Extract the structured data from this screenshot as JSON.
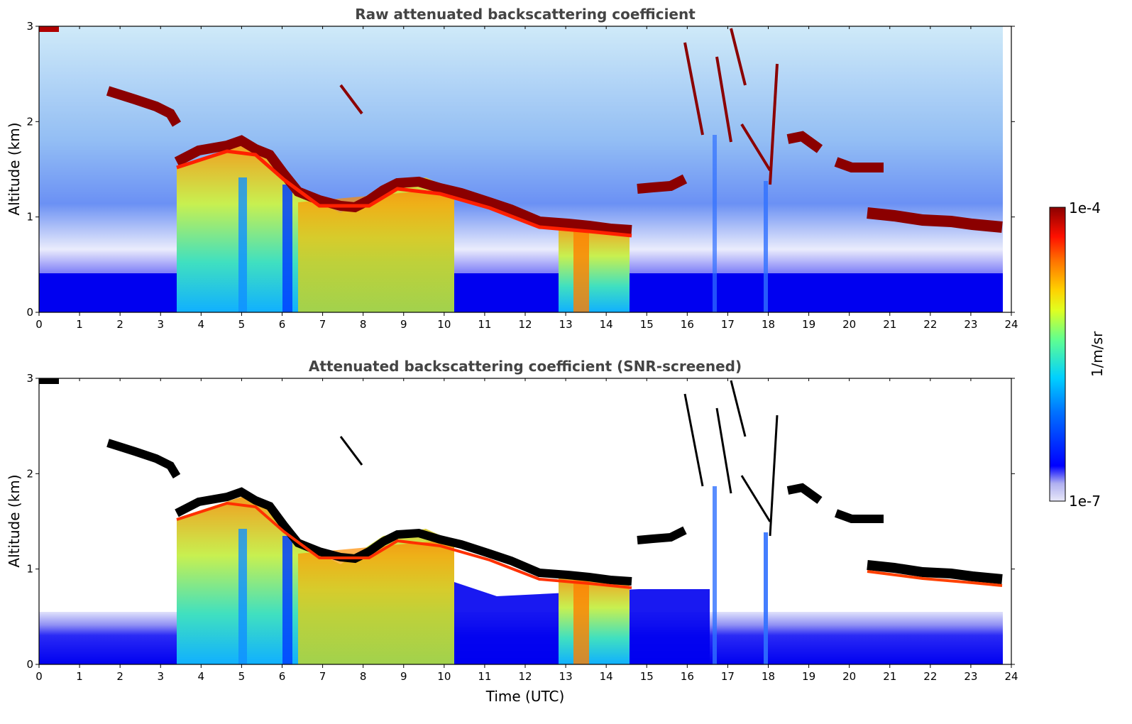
{
  "chart_data": [
    {
      "type": "heatmap",
      "title": "Raw attenuated backscattering coefficient",
      "ylabel": "Altitude (km)",
      "xlabel": "",
      "xlim": [
        0,
        24
      ],
      "ylim": [
        0,
        3
      ],
      "x_ticks": [
        "0",
        "1",
        "2",
        "3",
        "4",
        "5",
        "6",
        "7",
        "8",
        "9",
        "10",
        "11",
        "12",
        "13",
        "14",
        "15",
        "16",
        "17",
        "18",
        "19",
        "20",
        "21",
        "22",
        "23",
        "24"
      ],
      "y_ticks": [
        "0",
        "1",
        "2",
        "3"
      ],
      "cloud_top_profile": [
        {
          "t": 1.7,
          "z": 2.3
        },
        {
          "t": 2.5,
          "z": 2.2
        },
        {
          "t": 3.2,
          "z": 2.0
        },
        {
          "t": 3.5,
          "z": 1.6
        },
        {
          "t": 4.5,
          "z": 1.7
        },
        {
          "t": 5.5,
          "z": 1.6
        },
        {
          "t": 6.5,
          "z": 1.3
        },
        {
          "t": 7.5,
          "z": 1.15
        },
        {
          "t": 9.0,
          "z": 1.35
        },
        {
          "t": 10.5,
          "z": 1.25
        },
        {
          "t": 12.0,
          "z": 1.0
        },
        {
          "t": 13.0,
          "z": 0.95
        },
        {
          "t": 14.0,
          "z": 0.9
        },
        {
          "t": 14.6,
          "z": 0.85
        }
      ],
      "upper_cloud_segments": [
        {
          "t": [
            15.0,
            16.0
          ],
          "z": 1.3
        },
        {
          "t": [
            19.0,
            19.5
          ],
          "z": 1.8
        },
        {
          "t": [
            19.8,
            20.8
          ],
          "z": 1.5
        },
        {
          "t": [
            20.5,
            23.8
          ],
          "z": 0.95
        }
      ]
    },
    {
      "type": "heatmap",
      "title": "Attenuated backscattering coefficient (SNR-screened)",
      "ylabel": "Altitude (km)",
      "xlabel": "Time (UTC)",
      "xlim": [
        0,
        24
      ],
      "ylim": [
        0,
        3
      ],
      "x_ticks": [
        "0",
        "1",
        "2",
        "3",
        "4",
        "5",
        "6",
        "7",
        "8",
        "9",
        "10",
        "11",
        "12",
        "13",
        "14",
        "15",
        "16",
        "17",
        "18",
        "19",
        "20",
        "21",
        "22",
        "23",
        "24"
      ],
      "y_ticks": [
        "0",
        "1",
        "2",
        "3"
      ]
    }
  ],
  "colorbar": {
    "label": "1/m/sr",
    "max_label": "1e-4",
    "min_label": "1e-7",
    "colormap": "jet",
    "colors": [
      "#e8e8f8",
      "#0000e0",
      "#0000ff",
      "#0060ff",
      "#00c0ff",
      "#40ffc0",
      "#c0ff40",
      "#ffff00",
      "#ff9000",
      "#ff2000",
      "#8b0000"
    ]
  }
}
